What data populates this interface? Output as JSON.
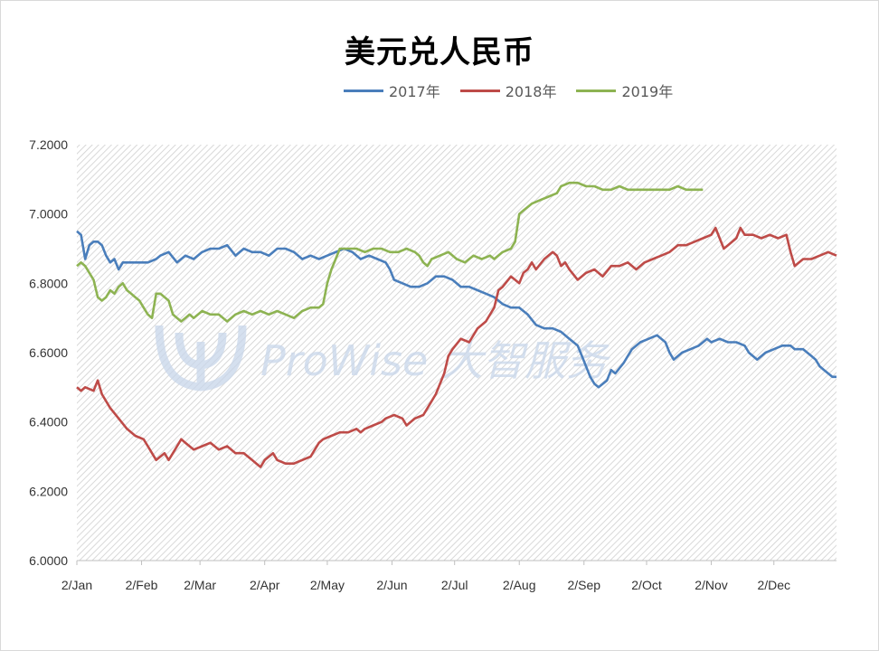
{
  "chart_data": {
    "type": "line",
    "title": "美元兑人民币",
    "legend_position": "top",
    "grid": true,
    "ylim": [
      6.0,
      7.2
    ],
    "y_ticks": [
      "6.0000",
      "6.2000",
      "6.4000",
      "6.6000",
      "6.8000",
      "7.0000",
      "7.2000"
    ],
    "x_ticks": [
      "2/Jan",
      "2/Feb",
      "2/Mar",
      "2/Apr",
      "2/May",
      "2/Jun",
      "2/Jul",
      "2/Aug",
      "2/Sep",
      "2/Oct",
      "2/Nov",
      "2/Dec"
    ],
    "watermark": "ProWise 大智服务",
    "series": [
      {
        "name": "2017年",
        "color": "#4a7ebb",
        "points": [
          [
            0,
            6.95
          ],
          [
            2,
            6.94
          ],
          [
            4,
            6.87
          ],
          [
            6,
            6.91
          ],
          [
            8,
            6.92
          ],
          [
            10,
            6.92
          ],
          [
            12,
            6.91
          ],
          [
            14,
            6.88
          ],
          [
            16,
            6.86
          ],
          [
            18,
            6.87
          ],
          [
            20,
            6.84
          ],
          [
            22,
            6.86
          ],
          [
            26,
            6.86
          ],
          [
            30,
            6.86
          ],
          [
            34,
            6.86
          ],
          [
            38,
            6.87
          ],
          [
            40,
            6.88
          ],
          [
            44,
            6.89
          ],
          [
            48,
            6.86
          ],
          [
            52,
            6.88
          ],
          [
            56,
            6.87
          ],
          [
            60,
            6.89
          ],
          [
            64,
            6.9
          ],
          [
            68,
            6.9
          ],
          [
            72,
            6.91
          ],
          [
            76,
            6.88
          ],
          [
            80,
            6.9
          ],
          [
            84,
            6.89
          ],
          [
            88,
            6.89
          ],
          [
            92,
            6.88
          ],
          [
            96,
            6.9
          ],
          [
            100,
            6.9
          ],
          [
            104,
            6.89
          ],
          [
            108,
            6.87
          ],
          [
            112,
            6.88
          ],
          [
            116,
            6.87
          ],
          [
            120,
            6.88
          ],
          [
            124,
            6.89
          ],
          [
            128,
            6.9
          ],
          [
            132,
            6.89
          ],
          [
            136,
            6.87
          ],
          [
            140,
            6.88
          ],
          [
            144,
            6.87
          ],
          [
            148,
            6.86
          ],
          [
            150,
            6.84
          ],
          [
            152,
            6.81
          ],
          [
            156,
            6.8
          ],
          [
            160,
            6.79
          ],
          [
            164,
            6.79
          ],
          [
            168,
            6.8
          ],
          [
            172,
            6.82
          ],
          [
            176,
            6.82
          ],
          [
            180,
            6.81
          ],
          [
            184,
            6.79
          ],
          [
            188,
            6.79
          ],
          [
            192,
            6.78
          ],
          [
            196,
            6.77
          ],
          [
            200,
            6.76
          ],
          [
            204,
            6.74
          ],
          [
            208,
            6.73
          ],
          [
            212,
            6.73
          ],
          [
            214,
            6.72
          ],
          [
            216,
            6.71
          ],
          [
            220,
            6.68
          ],
          [
            224,
            6.67
          ],
          [
            228,
            6.67
          ],
          [
            232,
            6.66
          ],
          [
            236,
            6.64
          ],
          [
            240,
            6.62
          ],
          [
            242,
            6.59
          ],
          [
            244,
            6.56
          ],
          [
            246,
            6.53
          ],
          [
            248,
            6.51
          ],
          [
            250,
            6.5
          ],
          [
            254,
            6.52
          ],
          [
            256,
            6.55
          ],
          [
            258,
            6.54
          ],
          [
            262,
            6.57
          ],
          [
            266,
            6.61
          ],
          [
            270,
            6.63
          ],
          [
            274,
            6.64
          ],
          [
            278,
            6.65
          ],
          [
            282,
            6.63
          ],
          [
            284,
            6.6
          ],
          [
            286,
            6.58
          ],
          [
            290,
            6.6
          ],
          [
            294,
            6.61
          ],
          [
            298,
            6.62
          ],
          [
            302,
            6.64
          ],
          [
            304,
            6.63
          ],
          [
            308,
            6.64
          ],
          [
            312,
            6.63
          ],
          [
            316,
            6.63
          ],
          [
            320,
            6.62
          ],
          [
            322,
            6.6
          ],
          [
            326,
            6.58
          ],
          [
            330,
            6.6
          ],
          [
            334,
            6.61
          ],
          [
            338,
            6.62
          ],
          [
            342,
            6.62
          ],
          [
            344,
            6.61
          ],
          [
            348,
            6.61
          ],
          [
            350,
            6.6
          ],
          [
            352,
            6.59
          ],
          [
            354,
            6.58
          ],
          [
            356,
            6.56
          ],
          [
            358,
            6.55
          ],
          [
            360,
            6.54
          ],
          [
            362,
            6.53
          ],
          [
            364,
            6.53
          ]
        ]
      },
      {
        "name": "2018年",
        "color": "#be4b48",
        "points": [
          [
            0,
            6.5
          ],
          [
            2,
            6.49
          ],
          [
            4,
            6.5
          ],
          [
            8,
            6.49
          ],
          [
            10,
            6.52
          ],
          [
            12,
            6.48
          ],
          [
            16,
            6.44
          ],
          [
            20,
            6.41
          ],
          [
            24,
            6.38
          ],
          [
            28,
            6.36
          ],
          [
            32,
            6.35
          ],
          [
            34,
            6.33
          ],
          [
            36,
            6.31
          ],
          [
            38,
            6.29
          ],
          [
            40,
            6.3
          ],
          [
            42,
            6.31
          ],
          [
            44,
            6.29
          ],
          [
            46,
            6.31
          ],
          [
            48,
            6.33
          ],
          [
            50,
            6.35
          ],
          [
            52,
            6.34
          ],
          [
            56,
            6.32
          ],
          [
            60,
            6.33
          ],
          [
            64,
            6.34
          ],
          [
            68,
            6.32
          ],
          [
            72,
            6.33
          ],
          [
            76,
            6.31
          ],
          [
            80,
            6.31
          ],
          [
            84,
            6.29
          ],
          [
            86,
            6.28
          ],
          [
            88,
            6.27
          ],
          [
            90,
            6.29
          ],
          [
            92,
            6.3
          ],
          [
            94,
            6.31
          ],
          [
            96,
            6.29
          ],
          [
            100,
            6.28
          ],
          [
            104,
            6.28
          ],
          [
            108,
            6.29
          ],
          [
            112,
            6.3
          ],
          [
            114,
            6.32
          ],
          [
            116,
            6.34
          ],
          [
            118,
            6.35
          ],
          [
            122,
            6.36
          ],
          [
            126,
            6.37
          ],
          [
            130,
            6.37
          ],
          [
            134,
            6.38
          ],
          [
            136,
            6.37
          ],
          [
            138,
            6.38
          ],
          [
            142,
            6.39
          ],
          [
            146,
            6.4
          ],
          [
            148,
            6.41
          ],
          [
            152,
            6.42
          ],
          [
            156,
            6.41
          ],
          [
            158,
            6.39
          ],
          [
            162,
            6.41
          ],
          [
            166,
            6.42
          ],
          [
            170,
            6.46
          ],
          [
            172,
            6.48
          ],
          [
            176,
            6.54
          ],
          [
            178,
            6.59
          ],
          [
            180,
            6.61
          ],
          [
            184,
            6.64
          ],
          [
            188,
            6.63
          ],
          [
            192,
            6.67
          ],
          [
            196,
            6.69
          ],
          [
            200,
            6.73
          ],
          [
            202,
            6.78
          ],
          [
            204,
            6.79
          ],
          [
            208,
            6.82
          ],
          [
            212,
            6.8
          ],
          [
            214,
            6.83
          ],
          [
            216,
            6.84
          ],
          [
            218,
            6.86
          ],
          [
            220,
            6.84
          ],
          [
            224,
            6.87
          ],
          [
            228,
            6.89
          ],
          [
            230,
            6.88
          ],
          [
            232,
            6.85
          ],
          [
            234,
            6.86
          ],
          [
            236,
            6.84
          ],
          [
            240,
            6.81
          ],
          [
            244,
            6.83
          ],
          [
            248,
            6.84
          ],
          [
            252,
            6.82
          ],
          [
            256,
            6.85
          ],
          [
            260,
            6.85
          ],
          [
            264,
            6.86
          ],
          [
            268,
            6.84
          ],
          [
            272,
            6.86
          ],
          [
            276,
            6.87
          ],
          [
            280,
            6.88
          ],
          [
            284,
            6.89
          ],
          [
            288,
            6.91
          ],
          [
            292,
            6.91
          ],
          [
            296,
            6.92
          ],
          [
            300,
            6.93
          ],
          [
            304,
            6.94
          ],
          [
            306,
            6.96
          ],
          [
            308,
            6.93
          ],
          [
            310,
            6.9
          ],
          [
            312,
            6.91
          ],
          [
            316,
            6.93
          ],
          [
            318,
            6.96
          ],
          [
            320,
            6.94
          ],
          [
            324,
            6.94
          ],
          [
            328,
            6.93
          ],
          [
            332,
            6.94
          ],
          [
            336,
            6.93
          ],
          [
            340,
            6.94
          ],
          [
            342,
            6.89
          ],
          [
            344,
            6.85
          ],
          [
            348,
            6.87
          ],
          [
            352,
            6.87
          ],
          [
            356,
            6.88
          ],
          [
            360,
            6.89
          ],
          [
            364,
            6.88
          ]
        ]
      },
      {
        "name": "2019年",
        "color": "#8db352",
        "points": [
          [
            0,
            6.85
          ],
          [
            2,
            6.86
          ],
          [
            4,
            6.85
          ],
          [
            6,
            6.83
          ],
          [
            8,
            6.81
          ],
          [
            10,
            6.76
          ],
          [
            12,
            6.75
          ],
          [
            14,
            6.76
          ],
          [
            16,
            6.78
          ],
          [
            18,
            6.77
          ],
          [
            20,
            6.79
          ],
          [
            22,
            6.8
          ],
          [
            24,
            6.78
          ],
          [
            26,
            6.77
          ],
          [
            28,
            6.76
          ],
          [
            30,
            6.75
          ],
          [
            32,
            6.73
          ],
          [
            34,
            6.71
          ],
          [
            36,
            6.7
          ],
          [
            38,
            6.77
          ],
          [
            40,
            6.77
          ],
          [
            44,
            6.75
          ],
          [
            46,
            6.71
          ],
          [
            48,
            6.7
          ],
          [
            50,
            6.69
          ],
          [
            52,
            6.7
          ],
          [
            54,
            6.71
          ],
          [
            56,
            6.7
          ],
          [
            60,
            6.72
          ],
          [
            64,
            6.71
          ],
          [
            68,
            6.71
          ],
          [
            72,
            6.69
          ],
          [
            76,
            6.71
          ],
          [
            80,
            6.72
          ],
          [
            84,
            6.71
          ],
          [
            88,
            6.72
          ],
          [
            92,
            6.71
          ],
          [
            96,
            6.72
          ],
          [
            100,
            6.71
          ],
          [
            104,
            6.7
          ],
          [
            108,
            6.72
          ],
          [
            112,
            6.73
          ],
          [
            116,
            6.73
          ],
          [
            118,
            6.74
          ],
          [
            120,
            6.8
          ],
          [
            122,
            6.84
          ],
          [
            124,
            6.87
          ],
          [
            126,
            6.9
          ],
          [
            130,
            6.9
          ],
          [
            134,
            6.9
          ],
          [
            138,
            6.89
          ],
          [
            142,
            6.9
          ],
          [
            146,
            6.9
          ],
          [
            150,
            6.89
          ],
          [
            154,
            6.89
          ],
          [
            158,
            6.9
          ],
          [
            162,
            6.89
          ],
          [
            164,
            6.88
          ],
          [
            166,
            6.86
          ],
          [
            168,
            6.85
          ],
          [
            170,
            6.87
          ],
          [
            174,
            6.88
          ],
          [
            178,
            6.89
          ],
          [
            182,
            6.87
          ],
          [
            186,
            6.86
          ],
          [
            190,
            6.88
          ],
          [
            194,
            6.87
          ],
          [
            198,
            6.88
          ],
          [
            200,
            6.87
          ],
          [
            204,
            6.89
          ],
          [
            208,
            6.9
          ],
          [
            210,
            6.92
          ],
          [
            212,
            7.0
          ],
          [
            214,
            7.01
          ],
          [
            216,
            7.02
          ],
          [
            218,
            7.03
          ],
          [
            222,
            7.04
          ],
          [
            226,
            7.05
          ],
          [
            230,
            7.06
          ],
          [
            232,
            7.08
          ],
          [
            236,
            7.09
          ],
          [
            240,
            7.09
          ],
          [
            244,
            7.08
          ],
          [
            248,
            7.08
          ],
          [
            252,
            7.07
          ],
          [
            256,
            7.07
          ],
          [
            260,
            7.08
          ],
          [
            264,
            7.07
          ],
          [
            268,
            7.07
          ],
          [
            272,
            7.07
          ],
          [
            276,
            7.07
          ],
          [
            280,
            7.07
          ],
          [
            284,
            7.07
          ],
          [
            288,
            7.08
          ],
          [
            292,
            7.07
          ],
          [
            296,
            7.07
          ],
          [
            300,
            7.07
          ]
        ]
      }
    ]
  }
}
